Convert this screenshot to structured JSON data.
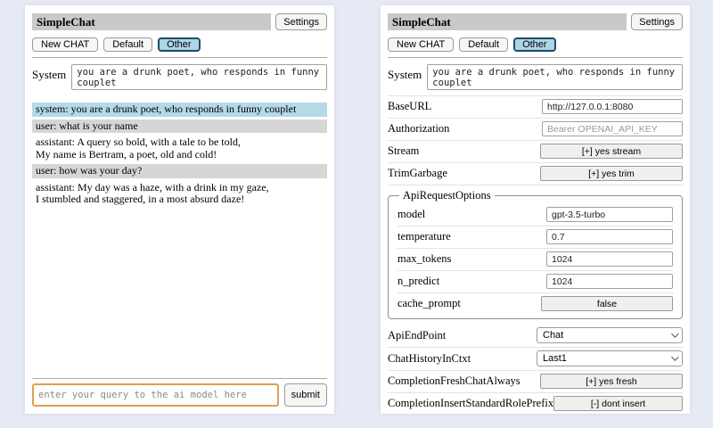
{
  "colors": {
    "page_bg": "#e6eaf4",
    "titlebar_bg": "#c9c9c9",
    "system_msg_bg": "#b4d9e7",
    "user_msg_bg": "#d6d6d6",
    "active_tab_bg": "#aed4e6",
    "active_tab_border": "#1d4e63",
    "focused_input_border": "#dda14f"
  },
  "header": {
    "title": "SimpleChat",
    "settings_label": "Settings",
    "buttons": [
      "New CHAT",
      "Default",
      "Other"
    ],
    "active_button": "Other"
  },
  "system_prompt": {
    "label": "System",
    "value": "you are a drunk poet, who responds in funny couplet"
  },
  "chat": {
    "messages": [
      {
        "role": "system",
        "text": "system: you are a drunk poet, who responds in funny couplet"
      },
      {
        "role": "user",
        "text": "user: what is your name"
      },
      {
        "role": "assistant",
        "text": "assistant: A query so bold, with a tale to be told,\nMy name is Bertram, a poet, old and cold!"
      },
      {
        "role": "user",
        "text": "user: how was your day?"
      },
      {
        "role": "assistant",
        "text": "assistant: My day was a haze, with a drink in my gaze,\nI stumbled and staggered, in a most absurd daze!"
      }
    ]
  },
  "query": {
    "placeholder": "enter your query to the ai model here",
    "submit_label": "submit"
  },
  "settings": {
    "rows": [
      {
        "label": "BaseURL",
        "type": "input",
        "value": "http://127.0.0.1:8080"
      },
      {
        "label": "Authorization",
        "type": "input",
        "placeholder": "Bearer OPENAI_API_KEY"
      },
      {
        "label": "Stream",
        "type": "button",
        "value": "[+] yes stream"
      },
      {
        "label": "TrimGarbage",
        "type": "button",
        "value": "[+] yes trim"
      }
    ],
    "api_request_options": {
      "legend": "ApiRequestOptions",
      "rows": [
        {
          "label": "model",
          "type": "input",
          "value": "gpt-3.5-turbo"
        },
        {
          "label": "temperature",
          "type": "input",
          "value": "0.7"
        },
        {
          "label": "max_tokens",
          "type": "input",
          "value": "1024"
        },
        {
          "label": "n_predict",
          "type": "input",
          "value": "1024"
        },
        {
          "label": "cache_prompt",
          "type": "button",
          "value": "false"
        }
      ]
    },
    "lower_rows": [
      {
        "label": "ApiEndPoint",
        "type": "select",
        "value": "Chat"
      },
      {
        "label": "ChatHistoryInCtxt",
        "type": "select",
        "value": "Last1"
      },
      {
        "label": "CompletionFreshChatAlways",
        "type": "button",
        "value": "[+] yes fresh"
      },
      {
        "label": "CompletionInsertStandardRolePrefix",
        "type": "button",
        "value": "[-] dont insert"
      }
    ]
  }
}
